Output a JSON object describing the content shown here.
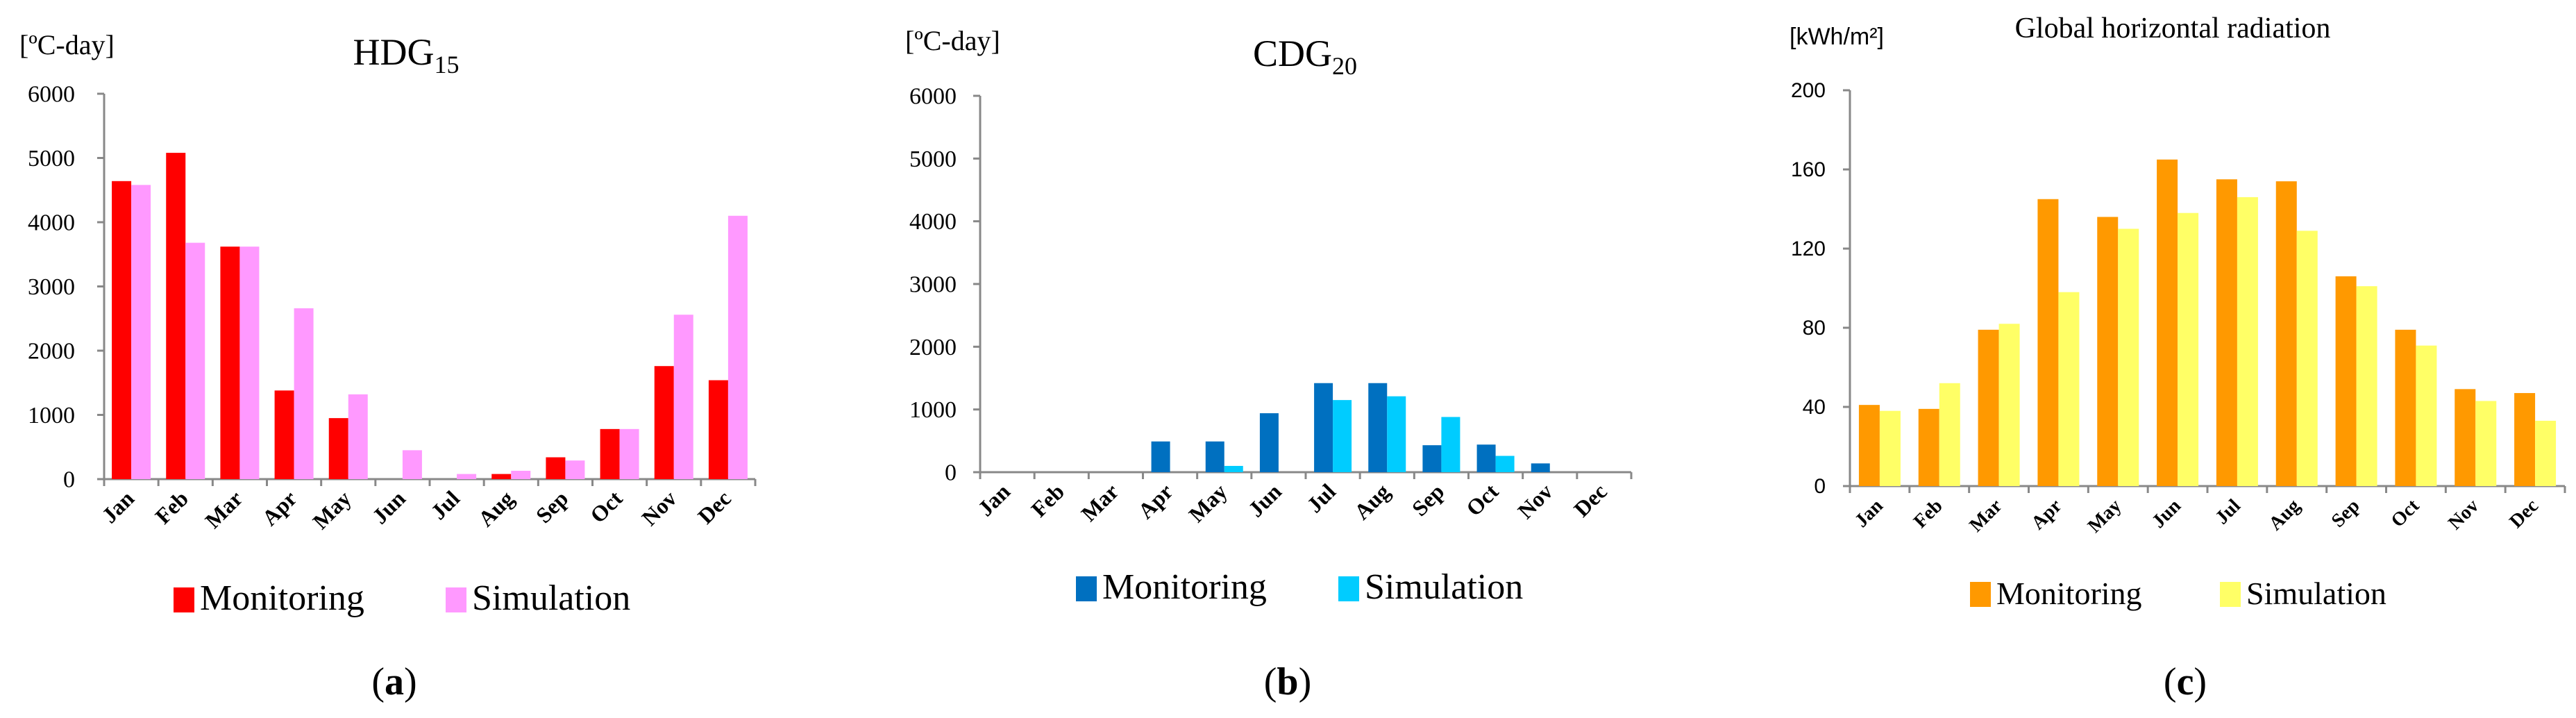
{
  "chart_data": [
    {
      "type": "bar",
      "panel_label": "(a)",
      "title": "HDG",
      "title_subscript": "15",
      "unit_label": "[ºC-day]",
      "ylim": [
        0,
        6000
      ],
      "yticks": [
        "0",
        "1000",
        "2000",
        "3000",
        "4000",
        "5000",
        "6000"
      ],
      "categories": [
        "Jan",
        "Feb",
        "Mar",
        "Apr",
        "May",
        "Jun",
        "Jul",
        "Aug",
        "Sep",
        "Oct",
        "Nov",
        "Dec"
      ],
      "series": [
        {
          "name": "Monitoring",
          "color": "#ff0000",
          "values": [
            4640,
            5080,
            3620,
            1380,
            950,
            0,
            0,
            80,
            340,
            780,
            1760,
            1540
          ]
        },
        {
          "name": "Simulation",
          "color": "#ff99ff",
          "values": [
            4580,
            3680,
            3620,
            2660,
            1320,
            450,
            80,
            130,
            290,
            780,
            2560,
            4100
          ]
        }
      ]
    },
    {
      "type": "bar",
      "panel_label": "(b)",
      "title": "CDG",
      "title_subscript": "20",
      "unit_label": "[ºC-day]",
      "ylim": [
        0,
        6000
      ],
      "yticks": [
        "0",
        "1000",
        "2000",
        "3000",
        "4000",
        "5000",
        "6000"
      ],
      "categories": [
        "Jan",
        "Feb",
        "Mar",
        "Apr",
        "May",
        "Jun",
        "Jul",
        "Aug",
        "Sep",
        "Oct",
        "Nov",
        "Dec"
      ],
      "series": [
        {
          "name": "Monitoring",
          "color": "#0070c0",
          "values": [
            0,
            0,
            0,
            490,
            490,
            940,
            1420,
            1420,
            430,
            440,
            140,
            0
          ]
        },
        {
          "name": "Simulation",
          "color": "#00ccff",
          "values": [
            0,
            0,
            0,
            0,
            100,
            0,
            1150,
            1210,
            880,
            260,
            0,
            0
          ]
        }
      ]
    },
    {
      "type": "bar",
      "panel_label": "(c)",
      "title": "Global horizontal radiation",
      "title_subscript": "",
      "unit_label": "[kWh/m²]",
      "ylim": [
        0,
        200
      ],
      "yticks": [
        "0",
        "40",
        "80",
        "120",
        "160",
        "200"
      ],
      "categories": [
        "Jan",
        "Feb",
        "Mar",
        "Apr",
        "May",
        "Jun",
        "Jul",
        "Aug",
        "Sep",
        "Oct",
        "Nov",
        "Dec"
      ],
      "series": [
        {
          "name": "Monitoring",
          "color": "#ff9900",
          "values": [
            41,
            39,
            79,
            145,
            136,
            165,
            155,
            154,
            106,
            79,
            49,
            47
          ]
        },
        {
          "name": "Simulation",
          "color": "#ffff66",
          "values": [
            38,
            52,
            82,
            98,
            130,
            138,
            146,
            129,
            101,
            71,
            43,
            33
          ]
        }
      ]
    }
  ]
}
